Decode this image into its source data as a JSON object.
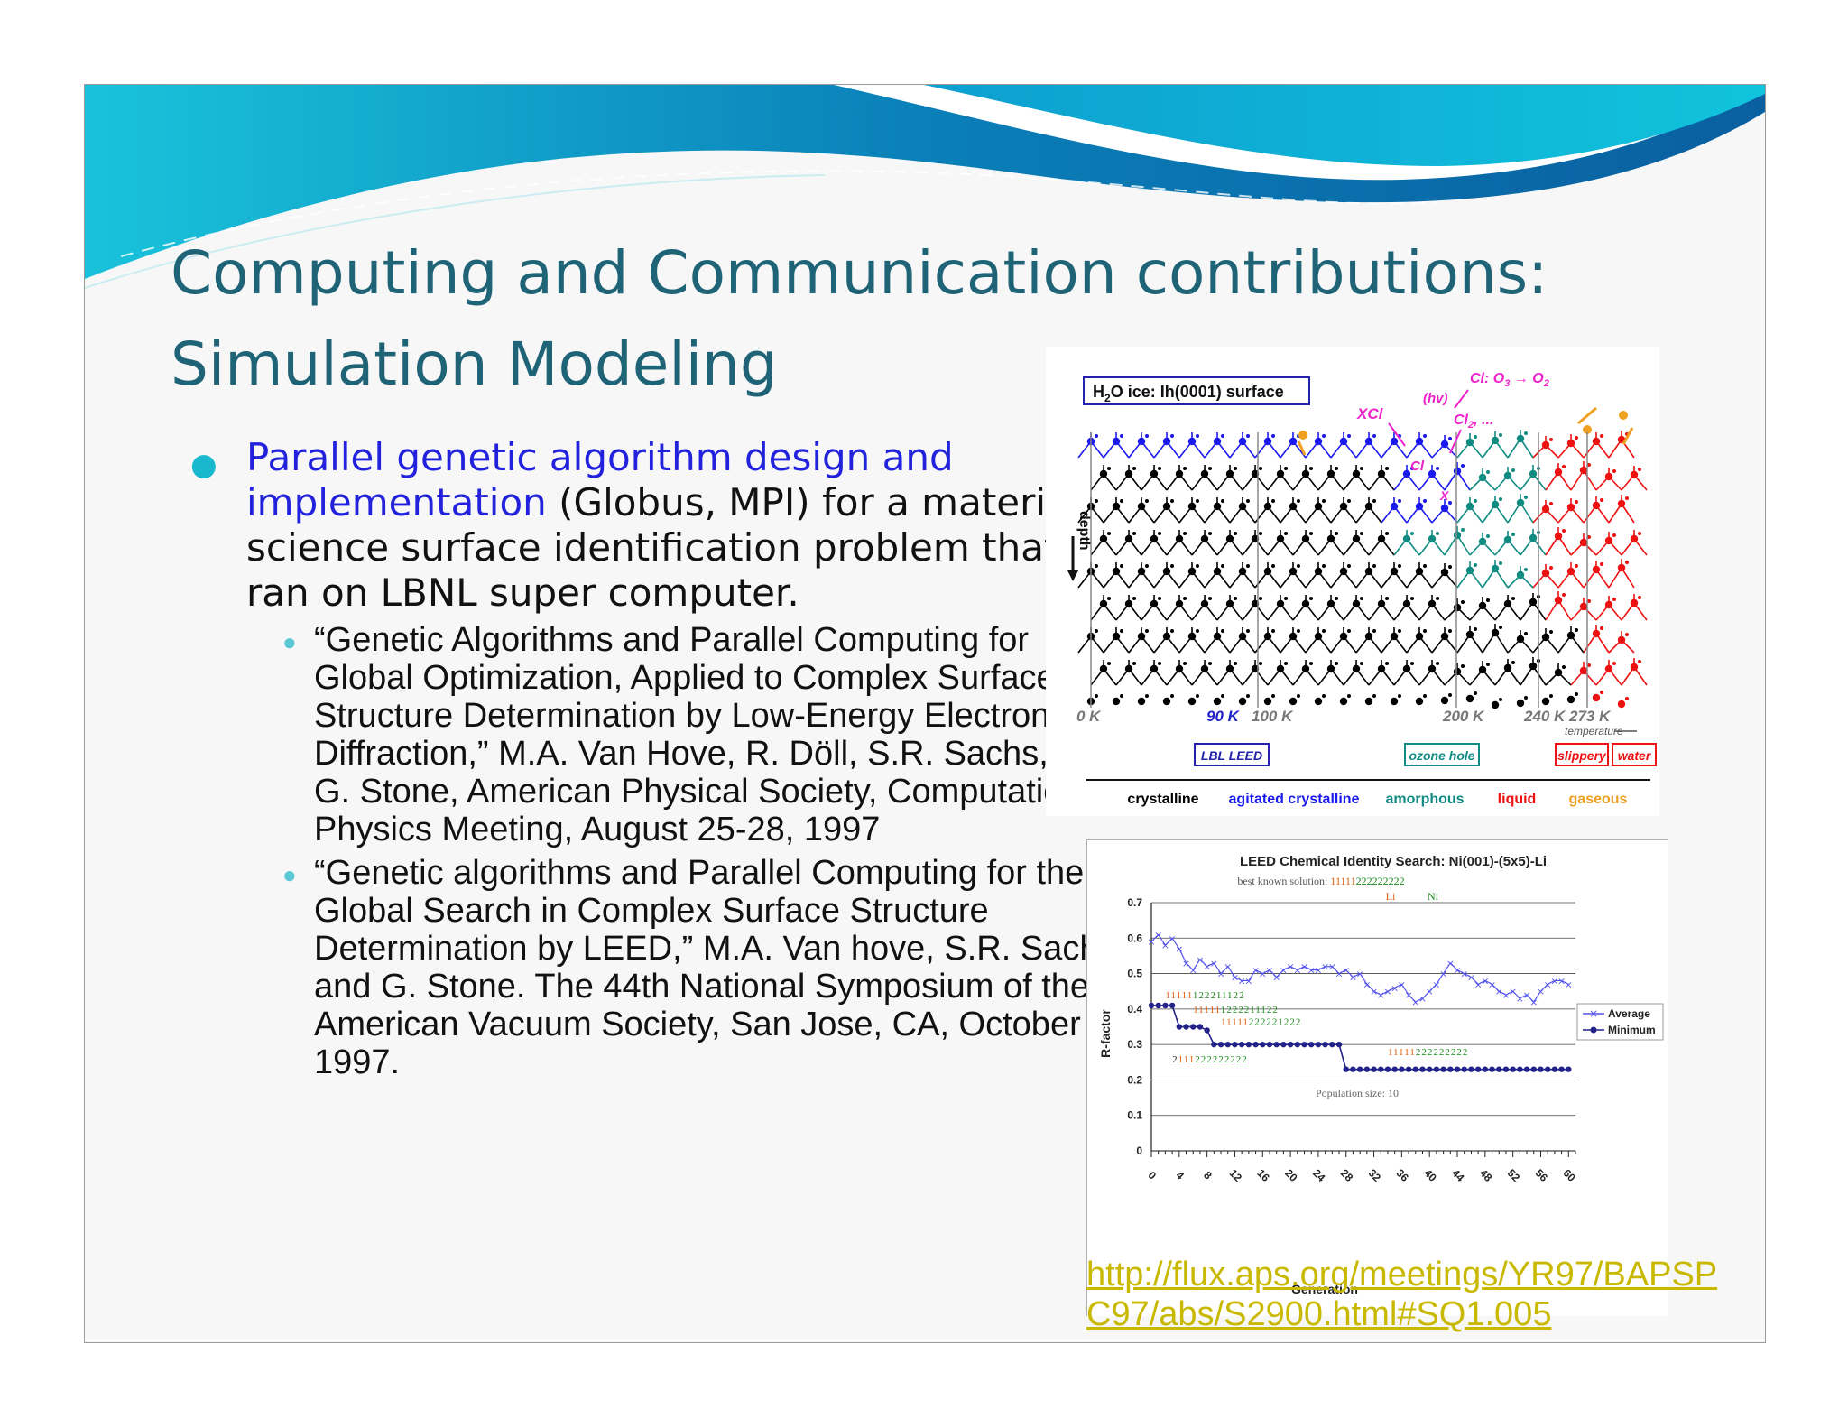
{
  "slide": {
    "title_line1": "Computing and Communication contributions:",
    "title_line2": "Simulation Modeling",
    "bullet": {
      "highlight": "Parallel genetic algorithm design and implementation",
      "rest": " (Globus, MPI) for a materials science surface identification problem that ran on LBNL super computer."
    },
    "subbullets": [
      "“Genetic Algorithms and Parallel Computing for Global Optimization, Applied to Complex Surface Structure Determination by Low-Energy Electron Diffraction,”    M.A. Van Hove, R. Döll, S.R. Sachs, and G. Stone, American Physical Society, Computational Physics Meeting, August 25-28, 1997",
      "“Genetic algorithms and Parallel Computing for the Global Search in Complex Surface Structure Determination by LEED,” M.A. Van hove, S.R. Sachs, and G. Stone. The 44th National Symposium of the American Vacuum Society, San Jose, CA, October 1997."
    ],
    "link": "http://flux.aps.org/meetings/YR97/BAPSPC97/abs/S2900.html#SQ1.005"
  },
  "ice_figure": {
    "title_prefix": "H",
    "title_sub": "2",
    "title_rest": "O ice:  Ih(0001) surface",
    "depth": "depth",
    "temp_ticks": [
      "0 K",
      "90 K",
      "100 K",
      "200 K",
      "240 K",
      "273 K"
    ],
    "temperature": "temperature",
    "boxes": [
      "LBL LEED",
      "ozone hole",
      "slippery",
      "water"
    ],
    "phases": [
      "crystalline",
      "agitated crystalline",
      "amorphous",
      "liquid",
      "gaseous"
    ],
    "annotations": {
      "xcl": "XCl",
      "hv": "(hv)",
      "cl_reaction": "Cl: O",
      "cl_reaction_sub": "3",
      "cl_product": "O",
      "cl_product_sub": "2",
      "cl2": "Cl",
      "cl2_sub": "2",
      "cl2_rest": ", ...",
      "cl": "Cl",
      "x": "X"
    },
    "colors": {
      "crystalline": "#000000",
      "agitated": "#1a1aee",
      "amorphous": "#0f8b82",
      "liquid": "#ee1111",
      "gaseous": "#f0a020",
      "annot": "#ee22cc"
    }
  },
  "chart_data": {
    "type": "line",
    "title": "LEED Chemical Identity Search: Ni(001)-(5x5)-Li",
    "subtitle_label": "best known solution: ",
    "subtitle_li": "11111",
    "subtitle_ni": "222222222",
    "legend_li": "Li",
    "legend_ni": "Ni",
    "xlabel": "Generation",
    "ylabel": "R-factor",
    "ylim": [
      0,
      0.7
    ],
    "yticks": [
      "0",
      "0.1",
      "0.2",
      "0.3",
      "0.4",
      "0.5",
      "0.6",
      "0.7"
    ],
    "xticks": [
      "0",
      "4",
      "8",
      "12",
      "16",
      "20",
      "24",
      "28",
      "32",
      "36",
      "40",
      "44",
      "48",
      "52",
      "56",
      "60"
    ],
    "note": "Population size: 10",
    "series": [
      {
        "name": "Average",
        "color": "#5555ee",
        "values": [
          0.59,
          0.61,
          0.58,
          0.6,
          0.57,
          0.53,
          0.51,
          0.54,
          0.52,
          0.53,
          0.5,
          0.52,
          0.49,
          0.48,
          0.48,
          0.51,
          0.5,
          0.51,
          0.49,
          0.51,
          0.52,
          0.51,
          0.52,
          0.51,
          0.51,
          0.52,
          0.52,
          0.5,
          0.51,
          0.49,
          0.5,
          0.47,
          0.45,
          0.44,
          0.45,
          0.46,
          0.47,
          0.44,
          0.42,
          0.43,
          0.45,
          0.47,
          0.5,
          0.53,
          0.51,
          0.5,
          0.49,
          0.47,
          0.48,
          0.47,
          0.45,
          0.44,
          0.45,
          0.43,
          0.44,
          0.42,
          0.45,
          0.47,
          0.48,
          0.48,
          0.47
        ]
      },
      {
        "name": "Minimum",
        "color": "#222288",
        "values": [
          0.41,
          0.41,
          0.41,
          0.41,
          0.35,
          0.35,
          0.35,
          0.35,
          0.34,
          0.3,
          0.3,
          0.3,
          0.3,
          0.3,
          0.3,
          0.3,
          0.3,
          0.3,
          0.3,
          0.3,
          0.3,
          0.3,
          0.3,
          0.3,
          0.3,
          0.3,
          0.3,
          0.3,
          0.23,
          0.23,
          0.23,
          0.23,
          0.23,
          0.23,
          0.23,
          0.23,
          0.23,
          0.23,
          0.23,
          0.23,
          0.23,
          0.23,
          0.23,
          0.23,
          0.23,
          0.23,
          0.23,
          0.23,
          0.23,
          0.23,
          0.23,
          0.23,
          0.23,
          0.23,
          0.23,
          0.23,
          0.23,
          0.23,
          0.23,
          0.23,
          0.23
        ]
      }
    ],
    "code_labels": [
      {
        "li": "11111",
        "ni": "122211122",
        "gen": 2,
        "y": 0.43
      },
      {
        "li": "11111",
        "ni": "1222211122",
        "gen": 6,
        "y": 0.39
      },
      {
        "li": "11111",
        "ni": "22222",
        "extra": "1222",
        "gen": 10,
        "y": 0.355
      },
      {
        "li": "11111",
        "ni": "222222222",
        "gen": 34,
        "y": 0.27
      },
      {
        "li": "2",
        "mid": "111",
        "ni": "222222222",
        "gen": 3,
        "y": 0.25
      }
    ]
  }
}
